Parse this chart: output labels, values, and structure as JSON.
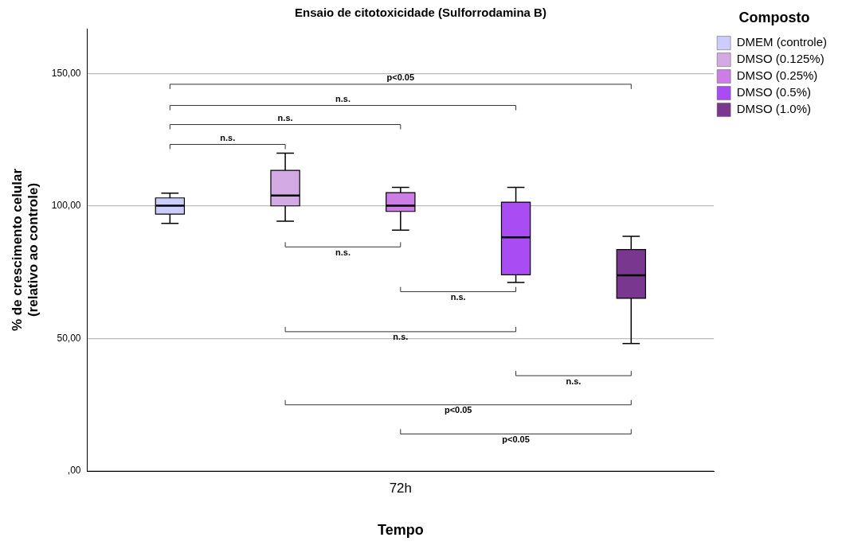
{
  "chart_data": {
    "type": "box",
    "title": "Ensaio de citotoxicidade (Sulforrodamina B)",
    "xlabel": "Tempo",
    "ylabel": "% de crescimento celular\n(relativo ao controle)",
    "legend_title": "Composto",
    "categories": [
      "72h"
    ],
    "series": [
      {
        "name": "DMEM (controle)",
        "color": "#ccccff",
        "boxes": [
          {
            "low": 93.5,
            "q1": 97,
            "median": 100.2,
            "q3": 103.1,
            "high": 104.9
          }
        ]
      },
      {
        "name": "DMSO (0.125%)",
        "color": "#d3aae4",
        "boxes": [
          {
            "low": 94.3,
            "q1": 100.1,
            "median": 104,
            "q3": 113.5,
            "high": 120
          }
        ]
      },
      {
        "name": "DMSO (0.25%)",
        "color": "#cc7de6",
        "boxes": [
          {
            "low": 90.9,
            "q1": 98,
            "median": 100.2,
            "q3": 105.1,
            "high": 107.1
          }
        ]
      },
      {
        "name": "DMSO (0.5%)",
        "color": "#a94cf3",
        "boxes": [
          {
            "low": 71.2,
            "q1": 74.1,
            "median": 88.2,
            "q3": 101.5,
            "high": 107.1
          }
        ]
      },
      {
        "name": "DMSO (1.0%)",
        "color": "#7a378f",
        "boxes": [
          {
            "low": 48.1,
            "q1": 65.2,
            "median": 73.9,
            "q3": 83.6,
            "high": 88.6
          }
        ]
      }
    ],
    "ylim": [
      0,
      167
    ],
    "yticks": [
      {
        "value": 0,
        "label": ",00"
      },
      {
        "value": 50,
        "label": "50,00"
      },
      {
        "value": 100,
        "label": "100,00"
      },
      {
        "value": 150,
        "label": "150,00"
      }
    ],
    "grid": "y",
    "legend": "right",
    "annotations": [
      "p<0.05",
      "n.s.",
      "n.s.",
      "n.s.",
      "n.s.",
      "n.s.",
      "n.s.",
      "n.s.",
      "p<0.05",
      "p<0.05"
    ]
  }
}
